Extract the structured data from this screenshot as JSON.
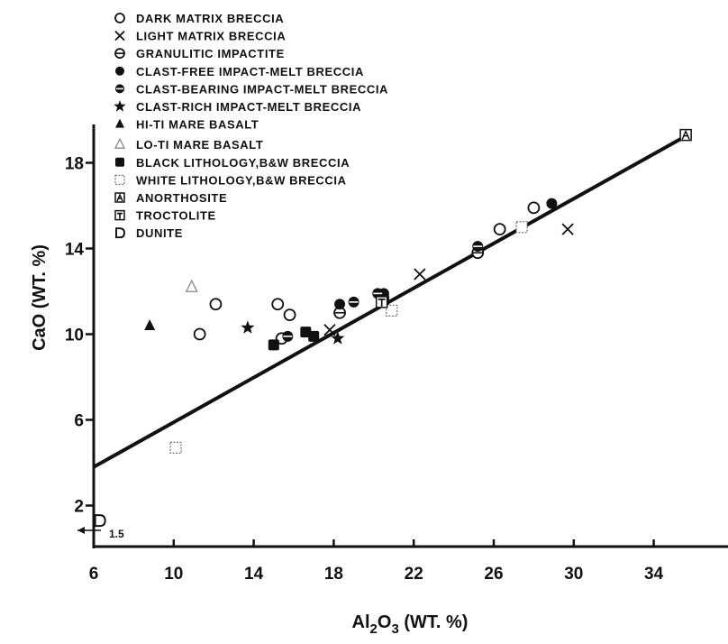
{
  "chart_data": {
    "type": "scatter",
    "xlabel": "Al2O3 (WT. %)",
    "xlabel_parts": {
      "main": "Al",
      "sub1": "2",
      "mid": "O",
      "sub2": "3",
      "rest": " (WT. %)"
    },
    "ylabel": "CaO (WT. %)",
    "x_ticks": [
      6,
      10,
      14,
      18,
      22,
      26,
      30,
      34
    ],
    "y_ticks": [
      2,
      6,
      10,
      14,
      18
    ],
    "xlim": [
      6,
      35.7
    ],
    "ylim": [
      0,
      20
    ],
    "grid": false,
    "legend_position": "top-left",
    "annotation": "1.5",
    "regression_line": {
      "x": [
        6,
        35.7
      ],
      "y": [
        3.8,
        19.3
      ]
    },
    "series": [
      {
        "name": "DARK MATRIX BRECCIA",
        "marker": "open-circle",
        "points": [
          [
            11.3,
            10.0
          ],
          [
            12.1,
            11.4
          ],
          [
            15.2,
            11.4
          ],
          [
            15.8,
            10.9
          ],
          [
            15.4,
            9.8
          ],
          [
            26.3,
            14.9
          ],
          [
            28.0,
            15.9
          ]
        ]
      },
      {
        "name": "LIGHT MATRIX BRECCIA",
        "marker": "x",
        "points": [
          [
            17.8,
            10.2
          ],
          [
            22.3,
            12.8
          ],
          [
            29.7,
            14.9
          ]
        ]
      },
      {
        "name": "GRANULITIC IMPACTITE",
        "marker": "half-circle",
        "points": [
          [
            18.3,
            11.0
          ],
          [
            25.2,
            13.8
          ]
        ]
      },
      {
        "name": "CLAST-FREE IMPACT-MELT BRECCIA",
        "marker": "filled-circle",
        "points": [
          [
            18.3,
            11.4
          ],
          [
            20.5,
            11.9
          ],
          [
            28.9,
            16.1
          ]
        ]
      },
      {
        "name": "CLAST-BEARING IMPACT-MELT BRECCIA",
        "marker": "circle-bar",
        "points": [
          [
            15.7,
            9.9
          ],
          [
            19.0,
            11.5
          ],
          [
            20.2,
            11.9
          ],
          [
            25.2,
            14.1
          ]
        ]
      },
      {
        "name": "CLAST-RICH IMPACT-MELT BRECCIA",
        "marker": "star",
        "points": [
          [
            13.7,
            10.3
          ],
          [
            18.2,
            9.8
          ]
        ]
      },
      {
        "name": "HI-TI MARE BASALT",
        "marker": "filled-triangle",
        "points": [
          [
            8.8,
            10.4
          ]
        ]
      },
      {
        "name": "LO-TI MARE BASALT",
        "marker": "open-triangle",
        "points": [
          [
            10.9,
            12.2
          ]
        ]
      },
      {
        "name": "BLACK LITHOLOGY,B&W BRECCIA",
        "marker": "filled-square",
        "points": [
          [
            15.0,
            9.5
          ],
          [
            16.6,
            10.1
          ],
          [
            17.0,
            9.9
          ],
          [
            20.5,
            11.6
          ]
        ]
      },
      {
        "name": "WHITE LITHOLOGY,B&W BRECCIA",
        "marker": "open-square",
        "points": [
          [
            10.1,
            4.7
          ],
          [
            20.9,
            11.1
          ],
          [
            27.4,
            15.0
          ]
        ]
      },
      {
        "name": "ANORTHOSITE",
        "marker": "a-square",
        "points": [
          [
            35.6,
            19.3
          ]
        ]
      },
      {
        "name": "TROCTOLITE",
        "marker": "t-square",
        "points": [
          [
            20.4,
            11.5
          ]
        ]
      },
      {
        "name": "DUNITE",
        "marker": "d-letter",
        "points": [
          [
            6.3,
            1.3
          ]
        ]
      }
    ]
  }
}
